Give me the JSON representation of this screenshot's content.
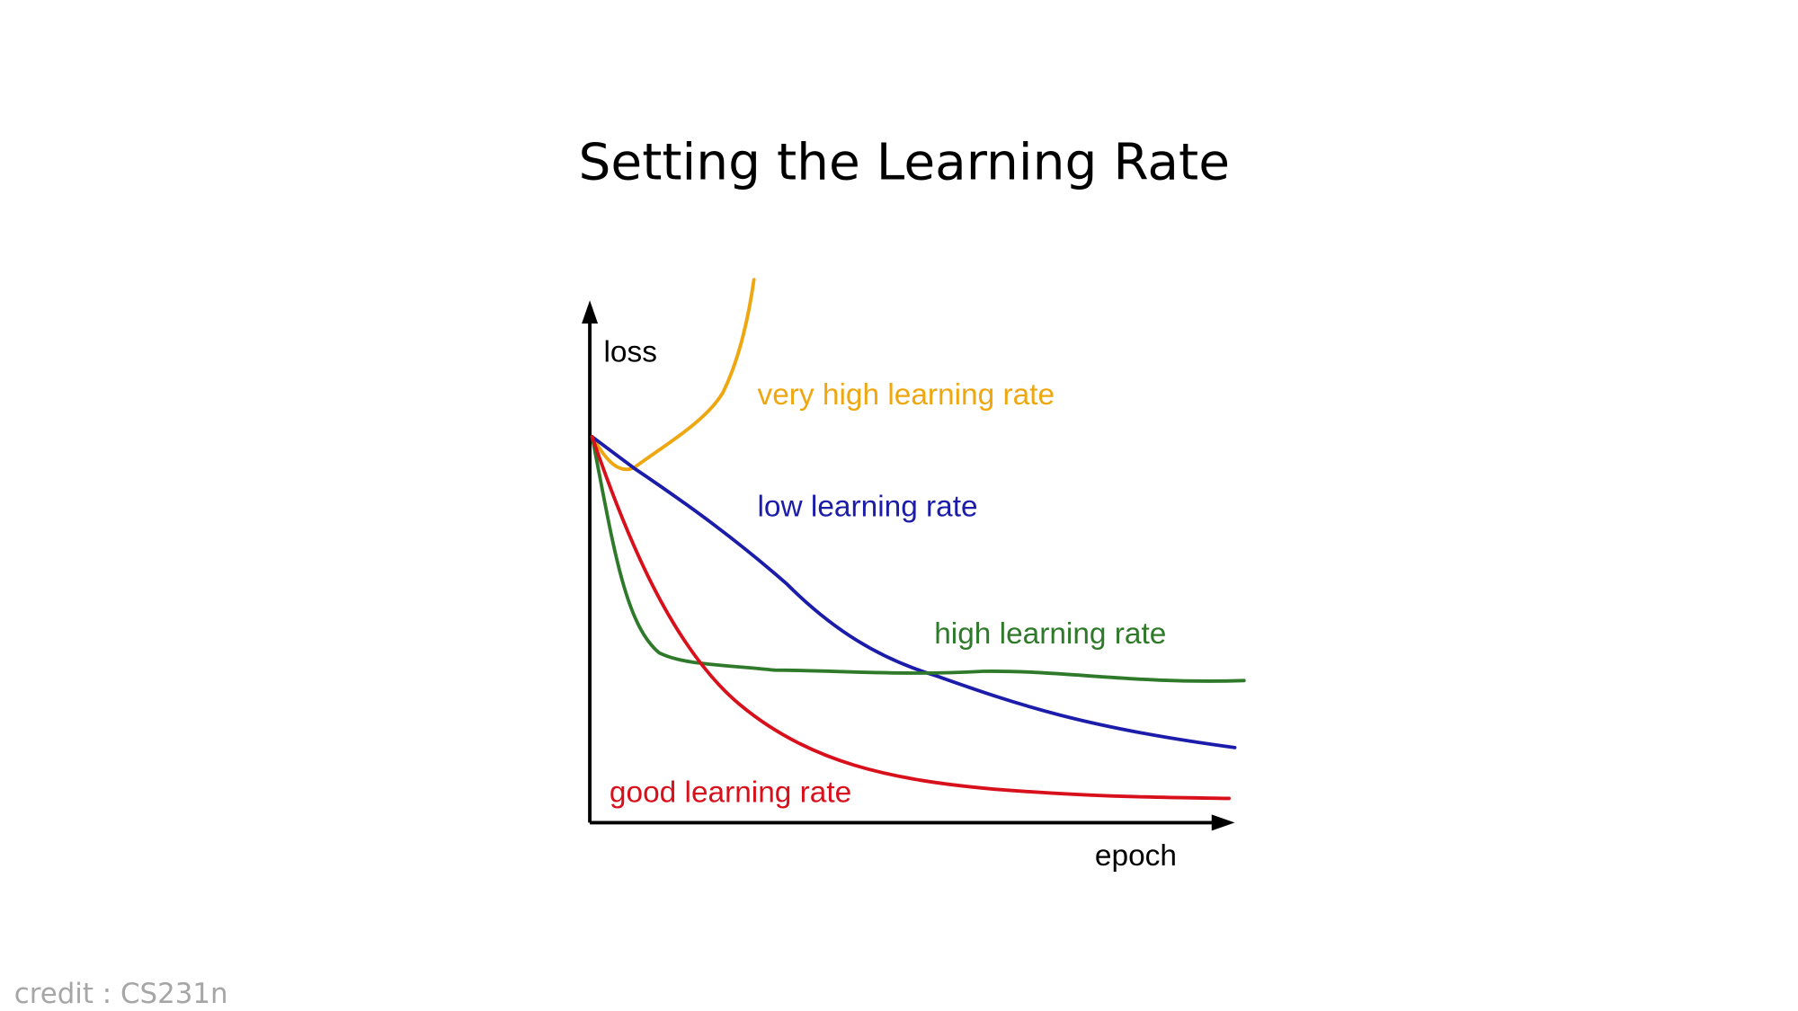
{
  "title": "Setting the Learning Rate",
  "axes": {
    "y_label": "loss",
    "x_label": "epoch"
  },
  "curves": [
    {
      "label": "very high learning rate"
    },
    {
      "label": "low learning rate"
    },
    {
      "label": "high learning rate"
    },
    {
      "label": "good learning rate"
    }
  ],
  "credit": "credit : CS231n"
}
